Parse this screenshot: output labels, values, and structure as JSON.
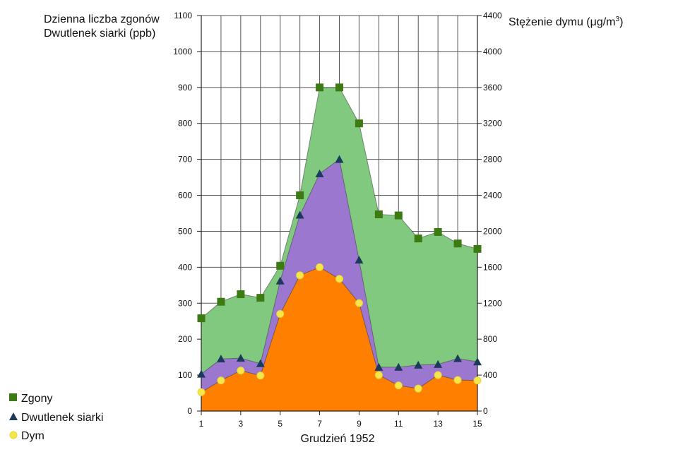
{
  "chart_data": {
    "type": "area",
    "title": "",
    "xlabel": "Grudzień 1952",
    "ylabel_left_line1": "Dzienna liczba zgonów",
    "ylabel_left_line2": "Dwutlenek siarki (ppb)",
    "ylabel_right": "Stężenie dymu (μg/m",
    "ylabel_right_sup": "3",
    "ylabel_right_end": ")",
    "x": [
      1,
      2,
      3,
      4,
      5,
      6,
      7,
      8,
      9,
      10,
      11,
      12,
      13,
      14,
      15
    ],
    "xlim": [
      1,
      15
    ],
    "x_ticks": [
      "1",
      "3",
      "5",
      "7",
      "9",
      "11",
      "13",
      "15"
    ],
    "ylim_left": [
      0,
      1100
    ],
    "y_ticks_left": [
      "0",
      "100",
      "200",
      "300",
      "400",
      "500",
      "600",
      "700",
      "800",
      "900",
      "1000",
      "1100"
    ],
    "ylim_right": [
      0,
      4400
    ],
    "y_ticks_right": [
      "0",
      "400",
      "800",
      "1200",
      "1600",
      "2000",
      "2400",
      "2800",
      "3200",
      "3600",
      "4000",
      "4400"
    ],
    "grid": true,
    "series": [
      {
        "name": "Zgony",
        "axis": "left",
        "marker": "square",
        "color": "#3c7a12",
        "fill": "#80c97f",
        "values": [
          258,
          304,
          325,
          315,
          404,
          600,
          900,
          900,
          800,
          547,
          544,
          480,
          498,
          466,
          451
        ]
      },
      {
        "name": "Dwutlenek siarki",
        "axis": "left",
        "marker": "triangle",
        "color": "#1b3a5c",
        "fill": "#9b77d0",
        "values": [
          103,
          145,
          147,
          132,
          362,
          545,
          660,
          700,
          420,
          122,
          122,
          128,
          130,
          146,
          137
        ]
      },
      {
        "name": "Dym",
        "axis": "right",
        "marker": "circle",
        "color": "#f5e64a",
        "fill": "#ff7f00",
        "values": [
          210,
          340,
          450,
          395,
          1080,
          1510,
          1600,
          1470,
          1200,
          400,
          285,
          250,
          400,
          345,
          340
        ]
      }
    ],
    "legend": [
      {
        "label": "Zgony",
        "marker": "square"
      },
      {
        "label": "Dwutlenek siarki",
        "marker": "triangle"
      },
      {
        "label": "Dym",
        "marker": "circle"
      }
    ],
    "legend_position": "bottom-left"
  }
}
